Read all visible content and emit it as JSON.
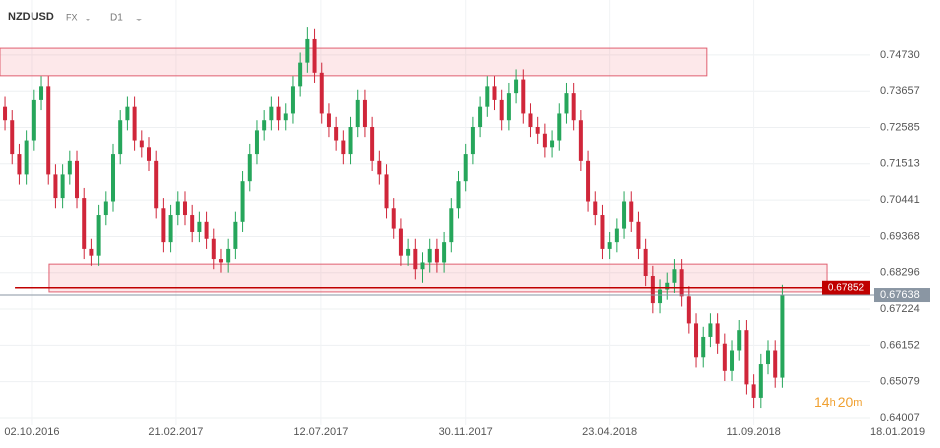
{
  "chart_data": {
    "type": "candlestick",
    "symbol": "NZDUSD",
    "market": "FX",
    "timeframe": "D1",
    "countdown": {
      "hours": "14",
      "hours_unit": "h",
      "minutes": "20",
      "minutes_unit": "m"
    },
    "bull_color": "#26a65b",
    "bear_color": "#d0263a",
    "grid": true,
    "ylim": [
      0.638,
      0.7635
    ],
    "yticks": [
      {
        "value": 0.7473,
        "label": "0.74730"
      },
      0.73657,
      0.72585,
      0.71513,
      0.70441,
      0.69368,
      0.68296,
      0.67224,
      0.66152,
      0.65079,
      0.64007
    ],
    "xlim": [
      -0.7,
      129.2
    ],
    "xticks": [
      {
        "value": 3.74,
        "label": "02.10.2016"
      },
      {
        "value": 23.74,
        "label": "21.02.2017"
      },
      {
        "value": 43.88,
        "label": "12.07.2017"
      },
      {
        "value": 64.0,
        "label": "30.11.2017"
      },
      {
        "value": 84.0,
        "label": "23.04.2018"
      },
      {
        "value": 104.0,
        "label": "11.09.2018"
      },
      {
        "value": 124.0,
        "label": "18.01.2019"
      }
    ],
    "zones": [
      {
        "x": [
          -0.7,
          97.5
        ],
        "y": [
          0.7411,
          0.7493
        ]
      },
      {
        "x": [
          6.1,
          114.2
        ],
        "y": [
          0.6773,
          0.6855
        ]
      }
    ],
    "level": {
      "value": 0.67852,
      "label": "0.67852",
      "color": "#c00000",
      "x": 0.7
    },
    "last": {
      "value": 0.67638,
      "label": "0.67638",
      "color": "#8a96a3"
    },
    "candles": [
      [
        0.732,
        0.735,
        0.725,
        0.728
      ],
      [
        0.728,
        0.731,
        0.715,
        0.718
      ],
      [
        0.718,
        0.721,
        0.709,
        0.712
      ],
      [
        0.712,
        0.725,
        0.709,
        0.722
      ],
      [
        0.722,
        0.737,
        0.719,
        0.734
      ],
      [
        0.734,
        0.741,
        0.731,
        0.738
      ],
      [
        0.738,
        0.741,
        0.709,
        0.712
      ],
      [
        0.712,
        0.715,
        0.702,
        0.705
      ],
      [
        0.705,
        0.715,
        0.702,
        0.712
      ],
      [
        0.712,
        0.719,
        0.709,
        0.716
      ],
      [
        0.716,
        0.719,
        0.702,
        0.705
      ],
      [
        0.705,
        0.708,
        0.687,
        0.69
      ],
      [
        0.69,
        0.693,
        0.685,
        0.688
      ],
      [
        0.688,
        0.703,
        0.685,
        0.7
      ],
      [
        0.7,
        0.707,
        0.697,
        0.704
      ],
      [
        0.704,
        0.721,
        0.701,
        0.718
      ],
      [
        0.718,
        0.731,
        0.715,
        0.728
      ],
      [
        0.728,
        0.735,
        0.725,
        0.732
      ],
      [
        0.732,
        0.735,
        0.719,
        0.722
      ],
      [
        0.722,
        0.725,
        0.717,
        0.72
      ],
      [
        0.72,
        0.723,
        0.713,
        0.716
      ],
      [
        0.716,
        0.719,
        0.699,
        0.702
      ],
      [
        0.702,
        0.705,
        0.689,
        0.692
      ],
      [
        0.692,
        0.703,
        0.689,
        0.7
      ],
      [
        0.7,
        0.707,
        0.697,
        0.704
      ],
      [
        0.704,
        0.707,
        0.697,
        0.7
      ],
      [
        0.7,
        0.703,
        0.692,
        0.695
      ],
      [
        0.695,
        0.701,
        0.692,
        0.698
      ],
      [
        0.698,
        0.701,
        0.69,
        0.693
      ],
      [
        0.693,
        0.696,
        0.684,
        0.687
      ],
      [
        0.687,
        0.69,
        0.683,
        0.686
      ],
      [
        0.686,
        0.693,
        0.683,
        0.69
      ],
      [
        0.69,
        0.701,
        0.687,
        0.698
      ],
      [
        0.698,
        0.713,
        0.695,
        0.71
      ],
      [
        0.71,
        0.721,
        0.707,
        0.718
      ],
      [
        0.718,
        0.728,
        0.715,
        0.725
      ],
      [
        0.725,
        0.731,
        0.722,
        0.728
      ],
      [
        0.728,
        0.735,
        0.725,
        0.732
      ],
      [
        0.732,
        0.735,
        0.725,
        0.728
      ],
      [
        0.728,
        0.733,
        0.725,
        0.73
      ],
      [
        0.73,
        0.741,
        0.727,
        0.738
      ],
      [
        0.738,
        0.748,
        0.735,
        0.745
      ],
      [
        0.745,
        0.7555,
        0.742,
        0.752
      ],
      [
        0.752,
        0.755,
        0.739,
        0.742
      ],
      [
        0.742,
        0.745,
        0.727,
        0.73
      ],
      [
        0.73,
        0.733,
        0.723,
        0.726
      ],
      [
        0.726,
        0.729,
        0.719,
        0.722
      ],
      [
        0.722,
        0.725,
        0.715,
        0.718
      ],
      [
        0.718,
        0.729,
        0.715,
        0.726
      ],
      [
        0.726,
        0.737,
        0.723,
        0.734
      ],
      [
        0.734,
        0.737,
        0.723,
        0.726
      ],
      [
        0.726,
        0.729,
        0.713,
        0.716
      ],
      [
        0.716,
        0.719,
        0.709,
        0.712
      ],
      [
        0.712,
        0.715,
        0.699,
        0.702
      ],
      [
        0.702,
        0.705,
        0.693,
        0.696
      ],
      [
        0.696,
        0.699,
        0.685,
        0.688
      ],
      [
        0.688,
        0.693,
        0.685,
        0.69
      ],
      [
        0.69,
        0.693,
        0.681,
        0.684
      ],
      [
        0.684,
        0.689,
        0.68,
        0.686
      ],
      [
        0.686,
        0.693,
        0.683,
        0.69
      ],
      [
        0.69,
        0.693,
        0.683,
        0.686
      ],
      [
        0.686,
        0.695,
        0.683,
        0.692
      ],
      [
        0.692,
        0.705,
        0.689,
        0.702
      ],
      [
        0.702,
        0.713,
        0.699,
        0.71
      ],
      [
        0.71,
        0.721,
        0.707,
        0.718
      ],
      [
        0.718,
        0.729,
        0.715,
        0.726
      ],
      [
        0.726,
        0.735,
        0.723,
        0.732
      ],
      [
        0.732,
        0.741,
        0.729,
        0.738
      ],
      [
        0.738,
        0.741,
        0.731,
        0.734
      ],
      [
        0.734,
        0.737,
        0.725,
        0.728
      ],
      [
        0.728,
        0.739,
        0.725,
        0.736
      ],
      [
        0.736,
        0.743,
        0.733,
        0.74
      ],
      [
        0.74,
        0.743,
        0.727,
        0.73
      ],
      [
        0.73,
        0.733,
        0.723,
        0.726
      ],
      [
        0.726,
        0.729,
        0.721,
        0.724
      ],
      [
        0.724,
        0.727,
        0.717,
        0.72
      ],
      [
        0.72,
        0.725,
        0.717,
        0.722
      ],
      [
        0.722,
        0.733,
        0.719,
        0.73
      ],
      [
        0.73,
        0.739,
        0.727,
        0.736
      ],
      [
        0.736,
        0.739,
        0.725,
        0.728
      ],
      [
        0.728,
        0.731,
        0.713,
        0.716
      ],
      [
        0.716,
        0.719,
        0.701,
        0.704
      ],
      [
        0.704,
        0.707,
        0.697,
        0.7
      ],
      [
        0.7,
        0.703,
        0.687,
        0.69
      ],
      [
        0.69,
        0.695,
        0.687,
        0.692
      ],
      [
        0.692,
        0.699,
        0.689,
        0.696
      ],
      [
        0.696,
        0.707,
        0.693,
        0.704
      ],
      [
        0.704,
        0.707,
        0.695,
        0.698
      ],
      [
        0.698,
        0.701,
        0.687,
        0.69
      ],
      [
        0.69,
        0.693,
        0.679,
        0.682
      ],
      [
        0.682,
        0.685,
        0.671,
        0.674
      ],
      [
        0.674,
        0.681,
        0.671,
        0.678
      ],
      [
        0.678,
        0.683,
        0.675,
        0.68
      ],
      [
        0.68,
        0.687,
        0.677,
        0.684
      ],
      [
        0.684,
        0.687,
        0.673,
        0.676
      ],
      [
        0.676,
        0.679,
        0.665,
        0.668
      ],
      [
        0.668,
        0.671,
        0.655,
        0.658
      ],
      [
        0.658,
        0.667,
        0.655,
        0.664
      ],
      [
        0.664,
        0.671,
        0.661,
        0.668
      ],
      [
        0.668,
        0.671,
        0.659,
        0.662
      ],
      [
        0.662,
        0.665,
        0.651,
        0.654
      ],
      [
        0.654,
        0.663,
        0.651,
        0.66
      ],
      [
        0.66,
        0.669,
        0.657,
        0.666
      ],
      [
        0.666,
        0.669,
        0.647,
        0.65
      ],
      [
        0.65,
        0.653,
        0.643,
        0.646
      ],
      [
        0.646,
        0.659,
        0.643,
        0.656
      ],
      [
        0.656,
        0.663,
        0.653,
        0.66
      ],
      [
        0.66,
        0.663,
        0.649,
        0.652
      ],
      [
        0.652,
        0.6794,
        0.649,
        0.6764
      ]
    ]
  }
}
